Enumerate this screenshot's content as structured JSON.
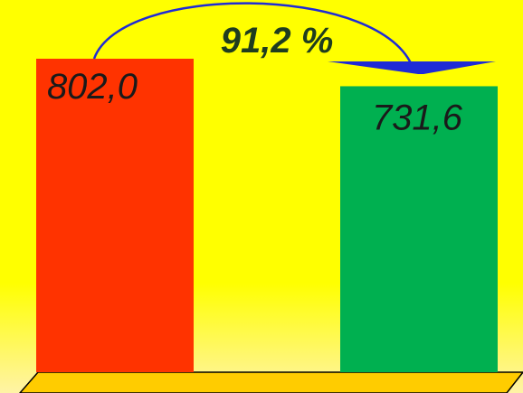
{
  "chart_data": {
    "type": "bar",
    "categories": [
      "",
      ""
    ],
    "values": [
      802.0,
      731.6
    ],
    "value_labels": [
      "802,0",
      "731,6"
    ],
    "ratio_label": "91,2 %",
    "colors": {
      "bar_1": "#ff3300",
      "bar_2": "#00b050",
      "background_top": "#ffff00",
      "background_bottom": "#fff5a0",
      "floor": "#ffcc00",
      "arrow": "#1f2bd6"
    },
    "title": "",
    "xlabel": "",
    "ylabel": "",
    "ylim": [
      0,
      802.0
    ],
    "grid": false,
    "legend": "none"
  }
}
